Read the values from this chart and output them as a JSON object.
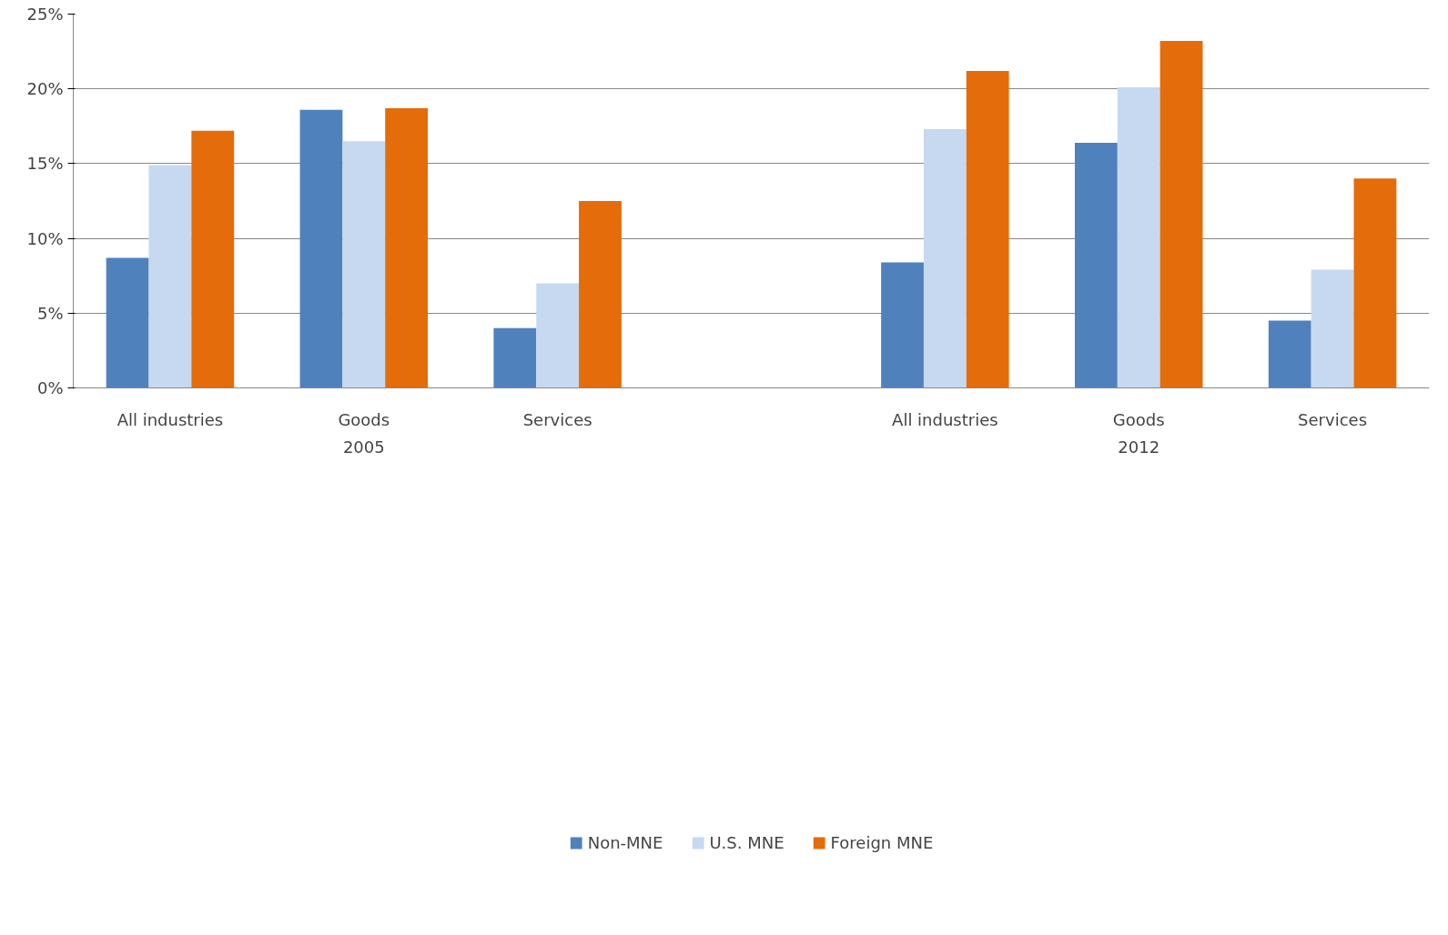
{
  "chart_data": {
    "type": "bar",
    "categories": [
      "All industries",
      "Goods",
      "Services",
      null,
      "All industries",
      "Goods",
      "Services"
    ],
    "series": [
      {
        "name": "Non-MNE",
        "color": "#4f81bd",
        "values": [
          8.7,
          18.6,
          4.0,
          null,
          8.4,
          16.4,
          4.5
        ]
      },
      {
        "name": "U.S. MNE",
        "color": "#c6d9f1",
        "values": [
          14.9,
          16.5,
          7.0,
          null,
          17.3,
          20.1,
          7.9
        ]
      },
      {
        "name": "Foreign MNE",
        "color": "#e46c0a",
        "values": [
          17.2,
          18.7,
          12.5,
          null,
          21.2,
          23.2,
          14.0
        ]
      }
    ],
    "ylim": [
      0,
      25
    ],
    "yticks": [
      {
        "value": 0,
        "label": "0%"
      },
      {
        "value": 5,
        "label": "5%"
      },
      {
        "value": 10,
        "label": "10%"
      },
      {
        "value": 15,
        "label": "15%"
      },
      {
        "value": 20,
        "label": "20%"
      },
      {
        "value": 25,
        "label": "25%"
      }
    ],
    "grid": "y",
    "legend": "bottom",
    "annotations": [
      "2005",
      "2012"
    ]
  }
}
